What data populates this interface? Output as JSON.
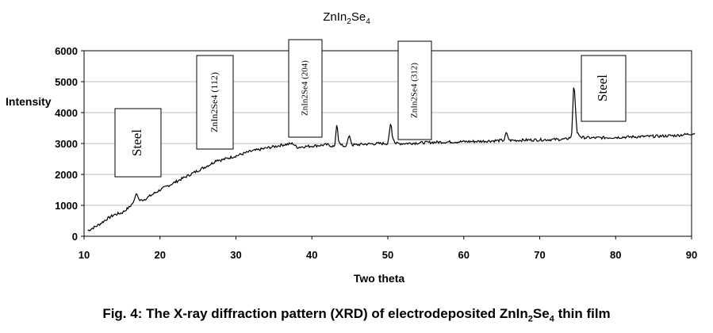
{
  "chart_data": {
    "type": "line",
    "title": "ZnIn2Se4",
    "title_parts": {
      "base": "ZnIn",
      "sub1": "2",
      "mid": "Se",
      "sub2": "4"
    },
    "xlabel": "Two theta",
    "ylabel": "Intensity",
    "xlim": [
      10,
      90
    ],
    "ylim": [
      0,
      6000
    ],
    "xticks": [
      10,
      20,
      30,
      40,
      50,
      60,
      70,
      80,
      90
    ],
    "yticks": [
      0,
      1000,
      2000,
      3000,
      4000,
      5000,
      6000
    ],
    "grid": "horizontal",
    "legend": "none",
    "series": [
      {
        "color": "#000000",
        "x": [
          10.5,
          12,
          13,
          14,
          15,
          16,
          16.5,
          16.9,
          17.3,
          18,
          19,
          20,
          22,
          24,
          26,
          27,
          27.5,
          28,
          30,
          32,
          34,
          36,
          37.5,
          38,
          40,
          42,
          43,
          43.3,
          43.5,
          43.8,
          44.5,
          44.9,
          45.3,
          47,
          49,
          50,
          50.4,
          50.6,
          51,
          52,
          54,
          56,
          58,
          60,
          62,
          64,
          65.3,
          65.6,
          66,
          68,
          70,
          72,
          73.5,
          74.2,
          74.5,
          74.9,
          75.5,
          77,
          80,
          83,
          86,
          88,
          89.5,
          90.5
        ],
        "y": [
          180,
          380,
          560,
          700,
          760,
          950,
          1100,
          1400,
          1150,
          1200,
          1350,
          1500,
          1750,
          2000,
          2250,
          2380,
          2480,
          2460,
          2600,
          2750,
          2850,
          2950,
          3000,
          2880,
          2920,
          2960,
          2900,
          3700,
          3100,
          2950,
          2900,
          3280,
          2950,
          2980,
          3000,
          3000,
          3720,
          3200,
          3000,
          3000,
          3020,
          3040,
          3050,
          3060,
          3070,
          3090,
          3100,
          3350,
          3100,
          3110,
          3120,
          3130,
          3140,
          3220,
          5050,
          3350,
          3200,
          3180,
          3200,
          3220,
          3240,
          3260,
          3300,
          3330
        ]
      }
    ],
    "annotations": [
      {
        "text": "Steel"
      },
      {
        "text": "ZnIn2Se4 (112)"
      },
      {
        "text": "ZnIn2Se4 (204)"
      },
      {
        "text": "ZnIn2Se4 (312)"
      },
      {
        "text": "Steel"
      }
    ]
  },
  "caption": {
    "prefix": "Fig. 4: The X-ray diffraction pattern (XRD) of electrodeposited ZnIn",
    "sub1": "2",
    "mid": "Se",
    "sub2": "4",
    "suffix": " thin film"
  }
}
